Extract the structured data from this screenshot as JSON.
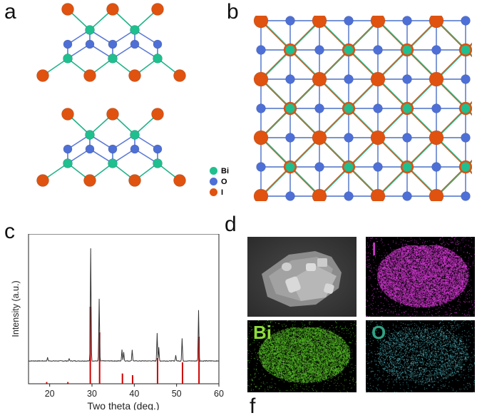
{
  "panels": {
    "a": {
      "letter": "a",
      "legend": [
        {
          "label": "Bi",
          "color": "#1fbf8f"
        },
        {
          "label": "O",
          "color": "#4d6fd6"
        },
        {
          "label": "I",
          "color": "#e0520f"
        }
      ]
    },
    "b": {
      "letter": "b"
    },
    "c": {
      "letter": "c"
    },
    "d": {
      "letter": "d",
      "maps": [
        {
          "label": "",
          "kind": "sem"
        },
        {
          "label": "I",
          "color": "#e23be2",
          "kind": "map"
        },
        {
          "label": "Bi",
          "color": "#8edc3a",
          "kind": "map"
        },
        {
          "label": "O",
          "color": "#2fa384",
          "kind": "map"
        }
      ]
    },
    "f": {
      "letter": "f"
    }
  },
  "colors": {
    "bi": "#1fbf8f",
    "o": "#4d6fd6",
    "i": "#e0520f",
    "xrd_measured": "#333333",
    "xrd_reference": "#cc0000"
  },
  "chart_data": {
    "type": "line",
    "title": "",
    "xlabel": "Two theta (deg.)",
    "ylabel": "Intensity (a.u.)",
    "xlim": [
      15,
      60
    ],
    "xticks": [
      20,
      30,
      40,
      50,
      60
    ],
    "grid": false,
    "legend": "none",
    "series": [
      {
        "kind": "measured",
        "peaks": [
          {
            "x": 19.5,
            "y": 0.03
          },
          {
            "x": 24.6,
            "y": 0.02
          },
          {
            "x": 29.7,
            "y": 1.0
          },
          {
            "x": 31.7,
            "y": 0.55
          },
          {
            "x": 37.1,
            "y": 0.1
          },
          {
            "x": 37.5,
            "y": 0.08
          },
          {
            "x": 39.5,
            "y": 0.1
          },
          {
            "x": 45.4,
            "y": 0.25
          },
          {
            "x": 45.8,
            "y": 0.12
          },
          {
            "x": 49.8,
            "y": 0.05
          },
          {
            "x": 51.3,
            "y": 0.2
          },
          {
            "x": 55.2,
            "y": 0.45
          }
        ]
      },
      {
        "kind": "reference",
        "sticks": [
          {
            "x": 19.3,
            "y": 0.02
          },
          {
            "x": 24.3,
            "y": 0.02
          },
          {
            "x": 29.6,
            "y": 0.9
          },
          {
            "x": 31.8,
            "y": 0.6
          },
          {
            "x": 37.2,
            "y": 0.12
          },
          {
            "x": 39.6,
            "y": 0.1
          },
          {
            "x": 45.5,
            "y": 0.3
          },
          {
            "x": 51.4,
            "y": 0.25
          },
          {
            "x": 55.3,
            "y": 0.55
          }
        ]
      }
    ]
  }
}
